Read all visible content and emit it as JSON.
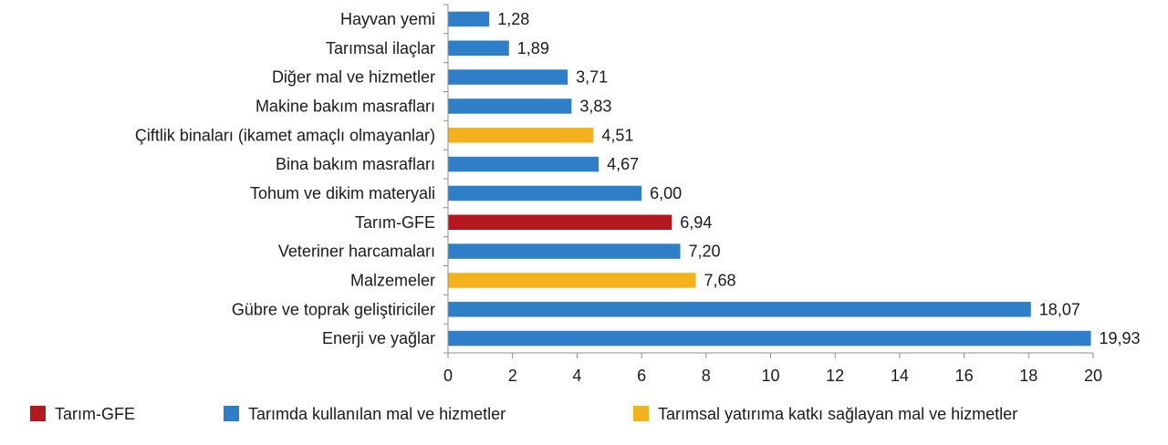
{
  "chart_data": {
    "type": "bar",
    "orientation": "horizontal",
    "categories": [
      "Hayvan yemi",
      "Tarımsal ilaçlar",
      "Diğer mal ve hizmetler",
      "Makine bakım masrafları",
      "Çiftlik binaları (ikamet amaçlı olmayanlar)",
      "Bina bakım masrafları",
      "Tohum ve dikim materyali",
      "Tarım-GFE",
      "Veteriner harcamaları",
      "Malzemeler",
      "Gübre ve toprak geliştiriciler",
      "Enerji ve yağlar"
    ],
    "values": [
      1.28,
      1.89,
      3.71,
      3.83,
      4.51,
      4.67,
      6.0,
      6.94,
      7.2,
      7.68,
      18.07,
      19.93
    ],
    "value_labels": [
      "1,28",
      "1,89",
      "3,71",
      "3,83",
      "4,51",
      "4,67",
      "6,00",
      "6,94",
      "7,20",
      "7,68",
      "18,07",
      "19,93"
    ],
    "bar_group": [
      1,
      1,
      1,
      1,
      2,
      1,
      1,
      0,
      1,
      2,
      1,
      1
    ],
    "xlim": [
      0,
      20
    ],
    "xticks": [
      "0",
      "2",
      "4",
      "6",
      "8",
      "10",
      "12",
      "14",
      "16",
      "18",
      "20"
    ],
    "grid": false,
    "legend_position": "bottom",
    "legend": [
      {
        "name": "Tarım-GFE",
        "color": "#b5191f"
      },
      {
        "name": "Tarımda kullanılan mal ve hizmetler",
        "color": "#2e7fc8"
      },
      {
        "name": "Tarımsal yatırıma katkı sağlayan mal ve hizmetler",
        "color": "#f5b21f"
      }
    ]
  }
}
